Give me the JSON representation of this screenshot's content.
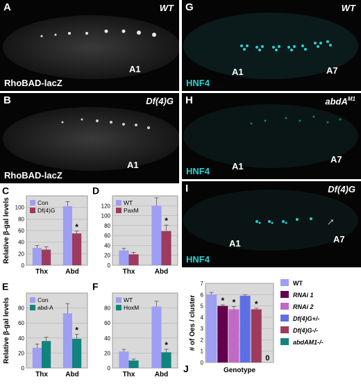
{
  "panels": {
    "A": {
      "letter": "A",
      "genotype": "WT",
      "marker": "A1",
      "stain": "RhoBAD-lacZ"
    },
    "B": {
      "letter": "B",
      "genotype": "Df(4)G",
      "marker": "A1",
      "stain": "RhoBAD-lacZ"
    },
    "G": {
      "letter": "G",
      "genotype": "WT",
      "marker1": "A1",
      "marker2": "A7",
      "stain": "HNF4"
    },
    "H": {
      "letter": "H",
      "genotype": "abdA",
      "genotype_sup": "M1",
      "marker1": "A1",
      "marker2": "A7",
      "stain": "HNF4"
    },
    "I": {
      "letter": "I",
      "genotype": "Df(4)G",
      "marker1": "A1",
      "marker2": "A7",
      "stain": "HNF4"
    }
  },
  "colors": {
    "lavender": "#9e9ef2",
    "maroon": "#9e3a5d",
    "teal": "#12847d",
    "cyan_stain": "#21d4d4"
  },
  "chart_data": [
    {
      "id": "C",
      "type": "bar",
      "letter": "C",
      "ylabel": "Relative β-gal levels",
      "categories": [
        "Thx",
        "Abd"
      ],
      "ylim": [
        0,
        120
      ],
      "ticks": [
        0,
        20,
        40,
        60,
        80,
        100
      ],
      "series": [
        {
          "name": "Con",
          "color": "#9e9ef2",
          "values": [
            30,
            102
          ],
          "err": [
            4,
            8
          ]
        },
        {
          "name": "Df(4)G",
          "color": "#9e3a5d",
          "values": [
            27,
            55
          ],
          "err": [
            5,
            4
          ]
        }
      ],
      "significance": [
        {
          "category": "Abd",
          "series": 1,
          "text": "*"
        }
      ]
    },
    {
      "id": "D",
      "type": "bar",
      "letter": "D",
      "ylabel": "",
      "categories": [
        "Thx",
        "Abd"
      ],
      "ylim": [
        0,
        140
      ],
      "ticks": [
        0,
        20,
        40,
        60,
        80,
        100,
        120
      ],
      "series": [
        {
          "name": "WT",
          "color": "#9e9ef2",
          "values": [
            30,
            120
          ],
          "err": [
            4,
            16
          ]
        },
        {
          "name": "PaxM",
          "color": "#9e3a5d",
          "values": [
            22,
            69
          ],
          "err": [
            4,
            12
          ]
        }
      ],
      "significance": [
        {
          "category": "Abd",
          "series": 1,
          "text": "*"
        }
      ]
    },
    {
      "id": "E",
      "type": "bar",
      "letter": "E",
      "ylabel": "Relative β-gal levels",
      "categories": [
        "Thx",
        "Abd"
      ],
      "ylim": [
        0,
        100
      ],
      "ticks": [
        0,
        20,
        40,
        60,
        80
      ],
      "series": [
        {
          "name": "Con",
          "color": "#9e9ef2",
          "values": [
            27,
            73
          ],
          "err": [
            5,
            13
          ]
        },
        {
          "name": "abd-A",
          "color": "#12847d",
          "values": [
            36,
            39
          ],
          "err": [
            5,
            6
          ]
        }
      ],
      "significance": [
        {
          "category": "Abd",
          "series": 1,
          "text": "*"
        }
      ]
    },
    {
      "id": "F",
      "type": "bar",
      "letter": "F",
      "ylabel": "",
      "categories": [
        "Thx",
        "Abd"
      ],
      "ylim": [
        0,
        100
      ],
      "ticks": [
        0,
        20,
        40,
        60,
        80
      ],
      "series": [
        {
          "name": "WT",
          "color": "#9e9ef2",
          "values": [
            22,
            82
          ],
          "err": [
            3,
            7
          ]
        },
        {
          "name": "HoxM",
          "color": "#12847d",
          "values": [
            10,
            21
          ],
          "err": [
            2,
            4
          ]
        }
      ],
      "significance": [
        {
          "category": "Abd",
          "series": 1,
          "text": "*"
        }
      ]
    },
    {
      "id": "J",
      "type": "bar",
      "letter": "J",
      "ylabel": "# of Oes / cluster",
      "xlabel": "Genotype",
      "ylim": [
        0,
        7
      ],
      "ticks": [
        0,
        1,
        2,
        3,
        4,
        5,
        6,
        7
      ],
      "categories": [
        "WT",
        "RNAi 1",
        "RNAi 2",
        "Df(4)G+/-",
        "Df(4)G-/-",
        "abdA-/-"
      ],
      "legend_labels": [
        "WT",
        "RNAi 1",
        "RNAi 2",
        "Df(4)G+/-",
        "Df(4)G-/-",
        "abdAM1-/-"
      ],
      "colors": [
        "#9e9ef2",
        "#650050",
        "#c169c6",
        "#5e6fe6",
        "#9e3a5d",
        "#12847d"
      ],
      "values": [
        6.0,
        5.0,
        4.7,
        5.9,
        4.7,
        0
      ],
      "err": [
        0.2,
        0.1,
        0.25,
        0.1,
        0.1,
        0
      ],
      "significance": [
        "",
        "*",
        "*",
        "",
        "*",
        ""
      ],
      "zero_label": "0"
    }
  ]
}
